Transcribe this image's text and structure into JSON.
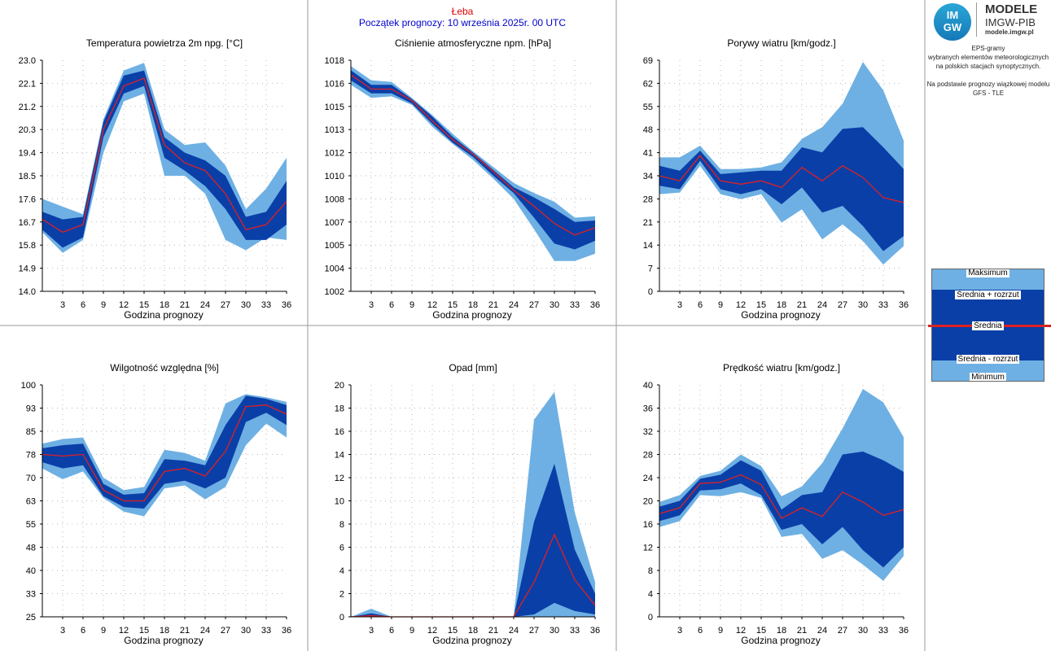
{
  "header": {
    "station": "Łeba",
    "start": "Początek prognozy: 10 września 2025r. 00 UTC"
  },
  "logo": {
    "mark_top": "IM",
    "mark_bottom": "GW",
    "line1": "MODELE",
    "line2": "IMGW-PIB",
    "line3": "modele.imgw.pl"
  },
  "info": {
    "line1": "EPS-gramy",
    "line2": "wybranych elementów meteorologicznych",
    "line3": "na polskich stacjach  synoptycznych.",
    "line4": "Na podstawie prognozy wiązkowej modelu",
    "line5": "GFS - TLE"
  },
  "legend": {
    "max": "Maksimum",
    "mean_plus": "Średnia + rozrzut",
    "mean": "Średnia",
    "mean_minus": "Średnia - rozrzut",
    "min": "Minimum"
  },
  "colors": {
    "outer_band": "#6eb0e3",
    "inner_band": "#0a3fa8",
    "mean_line": "#e02020",
    "station_title": "#e00000",
    "start_title": "#0000cc",
    "grid": "#b8b8b8"
  },
  "chart_data": [
    {
      "type": "area",
      "title": "Temperatura powietrza 2m npg. [°C]",
      "xlabel": "Godzina prognozy",
      "x": [
        0,
        3,
        6,
        9,
        12,
        15,
        18,
        21,
        24,
        27,
        30,
        33,
        36
      ],
      "xticks": [
        "3",
        "6",
        "9",
        "12",
        "15",
        "18",
        "21",
        "24",
        "27",
        "30",
        "33",
        "36"
      ],
      "yticks": [
        "14.0",
        "14.9",
        "15.8",
        "16.7",
        "17.6",
        "18.5",
        "19.4",
        "20.3",
        "21.2",
        "22.1",
        "23.0"
      ],
      "ylim": [
        14.0,
        23.0
      ],
      "series": [
        {
          "name": "Maksimum",
          "values": [
            17.6,
            17.3,
            17.0,
            20.7,
            22.6,
            22.9,
            20.3,
            19.7,
            19.8,
            18.9,
            17.2,
            18.0,
            19.2
          ]
        },
        {
          "name": "Średnia + rozrzut",
          "values": [
            17.1,
            16.8,
            16.9,
            20.6,
            22.4,
            22.6,
            20.0,
            19.4,
            19.1,
            18.5,
            16.9,
            17.1,
            18.3
          ]
        },
        {
          "name": "Średnia",
          "values": [
            16.8,
            16.3,
            16.6,
            20.3,
            22.0,
            22.3,
            19.7,
            19.0,
            18.7,
            17.8,
            16.4,
            16.6,
            17.5
          ]
        },
        {
          "name": "Średnia - rozrzut",
          "values": [
            16.4,
            15.7,
            16.1,
            20.0,
            21.7,
            22.0,
            19.2,
            18.7,
            18.1,
            17.2,
            16.0,
            16.0,
            16.6
          ]
        },
        {
          "name": "Minimum",
          "values": [
            16.3,
            15.5,
            16.0,
            19.4,
            21.4,
            21.7,
            18.5,
            18.5,
            17.8,
            16.0,
            15.6,
            16.1,
            16.0
          ]
        }
      ]
    },
    {
      "type": "area",
      "title": "Ciśnienie atmosferyczne npm. [hPa]",
      "xlabel": "Godzina prognozy",
      "x": [
        0,
        3,
        6,
        9,
        12,
        15,
        18,
        21,
        24,
        27,
        30,
        33,
        36
      ],
      "xticks": [
        "3",
        "6",
        "9",
        "12",
        "15",
        "18",
        "21",
        "24",
        "27",
        "30",
        "33",
        "36"
      ],
      "yticks": [
        "1002",
        "1004",
        "1005",
        "1007",
        "1008",
        "1010",
        "1012",
        "1013",
        "1015",
        "1016",
        "1018"
      ],
      "ylim": [
        1002.0,
        1018.0
      ],
      "series": [
        {
          "name": "Maksimum",
          "values": [
            1017.6,
            1016.6,
            1016.5,
            1015.4,
            1014.2,
            1012.9,
            1011.7,
            1010.6,
            1009.5,
            1008.8,
            1008.2,
            1007.1,
            1007.2
          ]
        },
        {
          "name": "Średnia + rozrzut",
          "values": [
            1017.3,
            1016.3,
            1016.3,
            1015.3,
            1014.1,
            1012.7,
            1011.6,
            1010.4,
            1009.2,
            1008.5,
            1007.7,
            1006.8,
            1006.9
          ]
        },
        {
          "name": "Średnia",
          "values": [
            1017.0,
            1016.0,
            1016.0,
            1015.2,
            1013.8,
            1012.5,
            1011.5,
            1010.3,
            1009.0,
            1007.9,
            1006.7,
            1005.9,
            1006.4
          ]
        },
        {
          "name": "Średnia - rozrzut",
          "values": [
            1016.6,
            1015.7,
            1015.7,
            1015.0,
            1013.6,
            1012.3,
            1011.3,
            1010.0,
            1008.8,
            1007.1,
            1005.3,
            1004.9,
            1005.5
          ]
        },
        {
          "name": "Minimum",
          "values": [
            1016.3,
            1015.4,
            1015.5,
            1014.9,
            1013.4,
            1012.2,
            1011.1,
            1009.8,
            1008.4,
            1006.3,
            1004.1,
            1004.1,
            1004.6
          ]
        }
      ]
    },
    {
      "type": "area",
      "title": "Porywy wiatru [km/godz.]",
      "xlabel": "Godzina prognozy",
      "x": [
        0,
        3,
        6,
        9,
        12,
        15,
        18,
        21,
        24,
        27,
        30,
        33,
        36
      ],
      "xticks": [
        "3",
        "6",
        "9",
        "12",
        "15",
        "18",
        "21",
        "24",
        "27",
        "30",
        "33",
        "36"
      ],
      "yticks": [
        "0",
        "7",
        "14",
        "21",
        "28",
        "34",
        "41",
        "48",
        "55",
        "62",
        "69"
      ],
      "ylim": [
        0,
        69
      ],
      "series": [
        {
          "name": "Maksimum",
          "values": [
            40.0,
            40.0,
            43.5,
            36.5,
            36.5,
            37.0,
            38.5,
            45.5,
            49.0,
            56.0,
            68.5,
            60.0,
            45.0
          ]
        },
        {
          "name": "Średnia + rozrzut",
          "values": [
            37.5,
            36.0,
            42.0,
            35.0,
            35.5,
            36.0,
            36.0,
            43.0,
            41.5,
            48.5,
            49.0,
            43.0,
            36.5
          ]
        },
        {
          "name": "Średnia",
          "values": [
            34.5,
            33.0,
            40.5,
            33.0,
            32.0,
            33.0,
            31.0,
            37.0,
            33.0,
            37.5,
            34.0,
            28.0,
            26.5
          ]
        },
        {
          "name": "Średnia - rozrzut",
          "values": [
            31.5,
            30.5,
            39.0,
            30.5,
            29.0,
            30.5,
            26.0,
            31.0,
            23.5,
            25.5,
            19.5,
            12.0,
            16.5
          ]
        },
        {
          "name": "Minimum",
          "values": [
            29.0,
            29.5,
            37.5,
            29.0,
            27.5,
            29.0,
            20.5,
            24.5,
            15.5,
            20.0,
            15.0,
            8.0,
            13.5
          ]
        }
      ]
    },
    {
      "type": "area",
      "title": "Wilgotność względna [%]",
      "xlabel": "Godzina prognozy",
      "x": [
        0,
        3,
        6,
        9,
        12,
        15,
        18,
        21,
        24,
        27,
        30,
        33,
        36
      ],
      "xticks": [
        "3",
        "6",
        "9",
        "12",
        "15",
        "18",
        "21",
        "24",
        "27",
        "30",
        "33",
        "36"
      ],
      "yticks": [
        "25",
        "33",
        "40",
        "48",
        "55",
        "63",
        "70",
        "78",
        "85",
        "93",
        "100"
      ],
      "ylim": [
        25,
        100
      ],
      "series": [
        {
          "name": "Maksimum",
          "values": [
            81.0,
            82.5,
            83.0,
            70.0,
            66.0,
            67.0,
            79.0,
            78.0,
            75.5,
            94.0,
            97.0,
            96.0,
            94.5
          ]
        },
        {
          "name": "Średnia + rozrzut",
          "values": [
            79.5,
            80.5,
            81.0,
            68.0,
            64.5,
            65.0,
            76.0,
            75.5,
            74.0,
            87.0,
            96.5,
            95.5,
            93.5
          ]
        },
        {
          "name": "Średnia",
          "values": [
            77.5,
            77.0,
            77.5,
            66.0,
            62.5,
            62.5,
            72.0,
            73.0,
            70.5,
            78.5,
            93.0,
            93.5,
            90.5
          ]
        },
        {
          "name": "Średnia - rozrzut",
          "values": [
            75.0,
            73.0,
            74.0,
            64.0,
            60.5,
            60.0,
            68.0,
            69.0,
            66.5,
            70.0,
            88.0,
            91.0,
            87.0
          ]
        },
        {
          "name": "Minimum",
          "values": [
            73.0,
            69.5,
            72.0,
            63.5,
            59.0,
            57.5,
            66.5,
            67.5,
            63.0,
            67.0,
            80.5,
            87.5,
            83.0
          ]
        }
      ]
    },
    {
      "type": "area",
      "title": "Opad [mm]",
      "xlabel": "Godzina prognozy",
      "x": [
        0,
        3,
        6,
        9,
        12,
        15,
        18,
        21,
        24,
        27,
        30,
        33,
        36
      ],
      "xticks": [
        "3",
        "6",
        "9",
        "12",
        "15",
        "18",
        "21",
        "24",
        "27",
        "30",
        "33",
        "36"
      ],
      "yticks": [
        "0",
        "2",
        "4",
        "6",
        "8",
        "10",
        "12",
        "14",
        "16",
        "18",
        "20"
      ],
      "ylim": [
        0,
        20
      ],
      "series": [
        {
          "name": "Maksimum",
          "values": [
            0,
            0.7,
            0,
            0,
            0,
            0,
            0,
            0,
            0,
            17.0,
            19.4,
            9.0,
            3.0
          ]
        },
        {
          "name": "Średnia + rozrzut",
          "values": [
            0,
            0.3,
            0,
            0,
            0,
            0,
            0,
            0,
            0,
            8.2,
            13.2,
            5.8,
            2.0
          ]
        },
        {
          "name": "Średnia",
          "values": [
            0,
            0.1,
            0,
            0,
            0,
            0,
            0,
            0,
            0,
            3.0,
            7.1,
            3.2,
            1.0
          ]
        },
        {
          "name": "Średnia - rozrzut",
          "values": [
            0,
            0,
            0,
            0,
            0,
            0,
            0,
            0,
            0,
            0.2,
            1.2,
            0.5,
            0.2
          ]
        },
        {
          "name": "Minimum",
          "values": [
            0,
            0,
            0,
            0,
            0,
            0,
            0,
            0,
            0,
            0,
            0,
            0,
            0
          ]
        }
      ]
    },
    {
      "type": "area",
      "title": "Prędkość wiatru [km/godz.]",
      "xlabel": "Godzina prognozy",
      "x": [
        0,
        3,
        6,
        9,
        12,
        15,
        18,
        21,
        24,
        27,
        30,
        33,
        36
      ],
      "xticks": [
        "3",
        "6",
        "9",
        "12",
        "15",
        "18",
        "21",
        "24",
        "27",
        "30",
        "33",
        "36"
      ],
      "yticks": [
        "0",
        "4",
        "8",
        "12",
        "16",
        "20",
        "24",
        "28",
        "32",
        "36",
        "40"
      ],
      "ylim": [
        0,
        40
      ],
      "series": [
        {
          "name": "Maksimum",
          "values": [
            19.8,
            21.0,
            24.3,
            25.2,
            28.0,
            26.0,
            20.8,
            22.5,
            26.5,
            32.5,
            39.3,
            37.0,
            31.0
          ]
        },
        {
          "name": "Średnia + rozrzut",
          "values": [
            19.0,
            20.0,
            23.8,
            24.5,
            27.0,
            25.2,
            18.5,
            21.0,
            21.5,
            28.0,
            28.5,
            27.0,
            25.0
          ]
        },
        {
          "name": "Średnia",
          "values": [
            17.8,
            18.8,
            23.0,
            23.2,
            24.5,
            22.8,
            17.0,
            18.8,
            17.3,
            21.5,
            19.8,
            17.5,
            18.5
          ]
        },
        {
          "name": "Średnia - rozrzut",
          "values": [
            16.5,
            17.5,
            21.8,
            22.0,
            23.0,
            21.0,
            15.0,
            16.0,
            12.5,
            15.5,
            11.5,
            8.5,
            12.0
          ]
        },
        {
          "name": "Minimum",
          "values": [
            15.5,
            16.5,
            21.0,
            20.8,
            21.5,
            20.5,
            13.8,
            14.3,
            10.0,
            11.5,
            9.0,
            6.2,
            10.5
          ]
        }
      ]
    }
  ]
}
